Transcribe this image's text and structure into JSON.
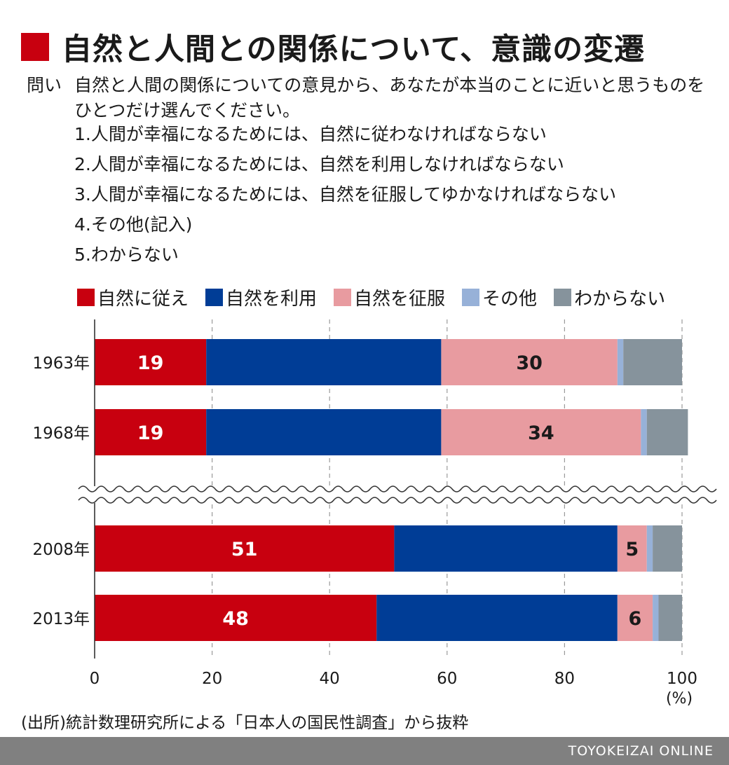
{
  "header": {
    "title": "自然と人間との関係について、意識の変遷"
  },
  "question": {
    "label": "問い",
    "text": "自然と人間の関係についての意見から、あなたが本当のことに近いと思うものをひとつだけ選んでください。",
    "options": [
      "1.人間が幸福になるためには、自然に従わなければならない",
      "2.人間が幸福になるためには、自然を利用しなければならない",
      "3.人間が幸福になるためには、自然を征服してゆかなければならない",
      "4.その他(記入)",
      "5.わからない"
    ]
  },
  "chart_data": {
    "type": "bar",
    "orientation": "horizontal",
    "stacked": true,
    "categories": [
      "1963年",
      "1968年",
      "2008年",
      "2013年"
    ],
    "series": [
      {
        "name": "自然に従え",
        "color": "#c8000f",
        "values": [
          19,
          19,
          51,
          48
        ]
      },
      {
        "name": "自然を利用",
        "color": "#003d96",
        "values": [
          40,
          40,
          38,
          41
        ]
      },
      {
        "name": "自然を征服",
        "color": "#e89ba0",
        "values": [
          30,
          34,
          5,
          6
        ]
      },
      {
        "name": "その他",
        "color": "#97b1d8",
        "values": [
          1,
          1,
          1,
          1
        ]
      },
      {
        "name": "わからない",
        "color": "#86939c",
        "values": [
          10,
          7,
          5,
          4
        ]
      }
    ],
    "data_labels": [
      {
        "category": "1963年",
        "series": "自然に従え",
        "text": "19",
        "color": "#ffffff"
      },
      {
        "category": "1963年",
        "series": "自然を征服",
        "text": "30",
        "color": "#1a1a1a"
      },
      {
        "category": "1968年",
        "series": "自然に従え",
        "text": "19",
        "color": "#ffffff"
      },
      {
        "category": "1968年",
        "series": "自然を征服",
        "text": "34",
        "color": "#1a1a1a"
      },
      {
        "category": "2008年",
        "series": "自然に従え",
        "text": "51",
        "color": "#ffffff"
      },
      {
        "category": "2008年",
        "series": "自然を征服",
        "text": "5",
        "color": "#1a1a1a"
      },
      {
        "category": "2013年",
        "series": "自然に従え",
        "text": "48",
        "color": "#ffffff"
      },
      {
        "category": "2013年",
        "series": "自然を征服",
        "text": "6",
        "color": "#1a1a1a"
      }
    ],
    "xlim": [
      0,
      100
    ],
    "xticks": [
      0,
      20,
      40,
      60,
      80,
      100
    ],
    "xunit": "(%)",
    "grid": "dashed vertical",
    "axis_break": "between 1968年 and 2008年",
    "legend": "top"
  },
  "source": "(出所)統計数理研究所による「日本人の国民性調査」から抜粋",
  "footer": {
    "brand": "TOYOKEIZAI ONLINE"
  }
}
